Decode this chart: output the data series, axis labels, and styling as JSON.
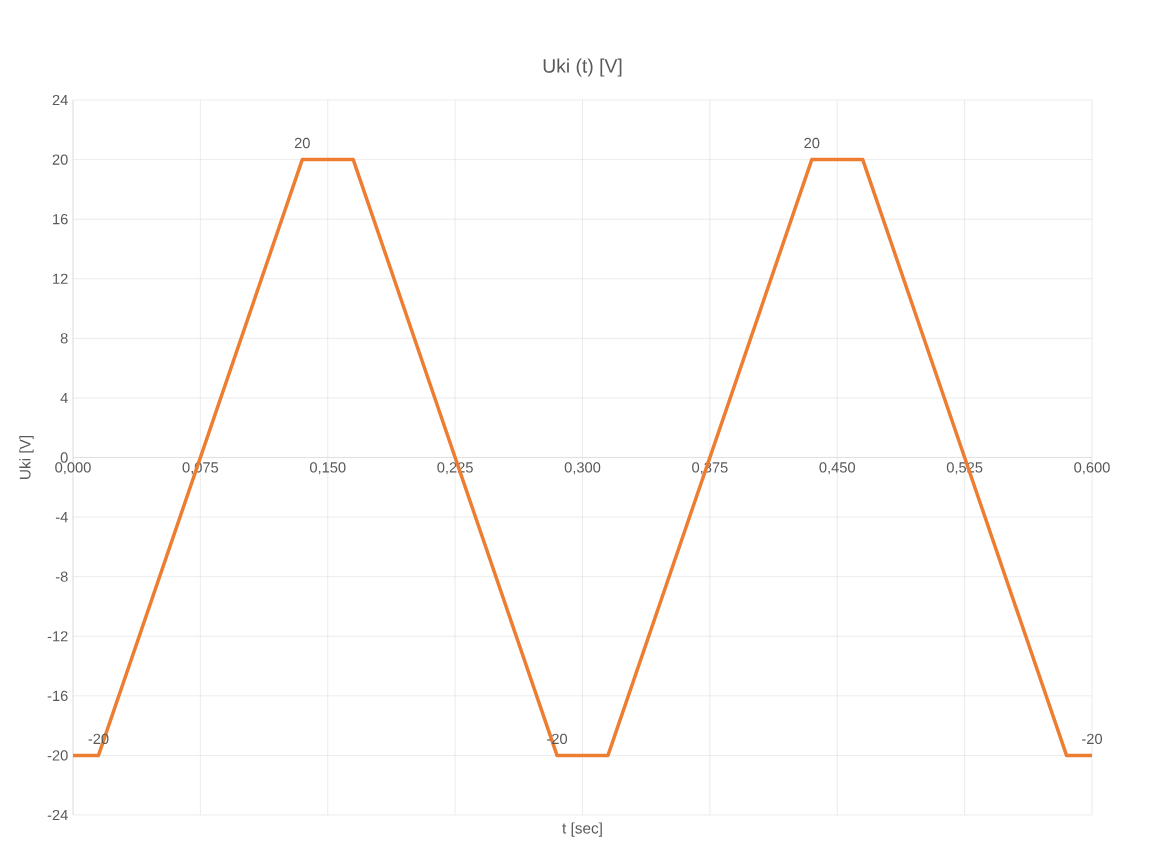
{
  "chart_data": {
    "type": "line",
    "title": "Uki (t) [V]",
    "xlabel": "t [sec]",
    "ylabel": "Uki [V]",
    "x": [
      0,
      0.015,
      0.135,
      0.165,
      0.285,
      0.315,
      0.435,
      0.465,
      0.585,
      0.6
    ],
    "series": [
      {
        "color": "#ed7d31",
        "values": [
          -20,
          -20,
          20,
          20,
          -20,
          -20,
          20,
          20,
          -20,
          -20
        ],
        "value_labels": [
          null,
          "-20",
          "20",
          null,
          "-20",
          null,
          "20",
          null,
          null,
          "-20"
        ]
      }
    ],
    "xlim": [
      0,
      0.6
    ],
    "ylim": [
      -24,
      24
    ],
    "xticks": [
      {
        "value": 0,
        "label": "0,000"
      },
      {
        "value": 0.075,
        "label": "0,075"
      },
      {
        "value": 0.15,
        "label": "0,150"
      },
      {
        "value": 0.225,
        "label": "0,225"
      },
      {
        "value": 0.3,
        "label": "0,300"
      },
      {
        "value": 0.375,
        "label": "0,375"
      },
      {
        "value": 0.45,
        "label": "0,450"
      },
      {
        "value": 0.525,
        "label": "0,525"
      },
      {
        "value": 0.6,
        "label": "0,600"
      }
    ],
    "yticks": [
      -24,
      -20,
      -16,
      -12,
      -8,
      -4,
      0,
      4,
      8,
      12,
      16,
      20,
      24
    ],
    "grid": true,
    "legend": false,
    "marker": "none",
    "line_style": "solid"
  }
}
